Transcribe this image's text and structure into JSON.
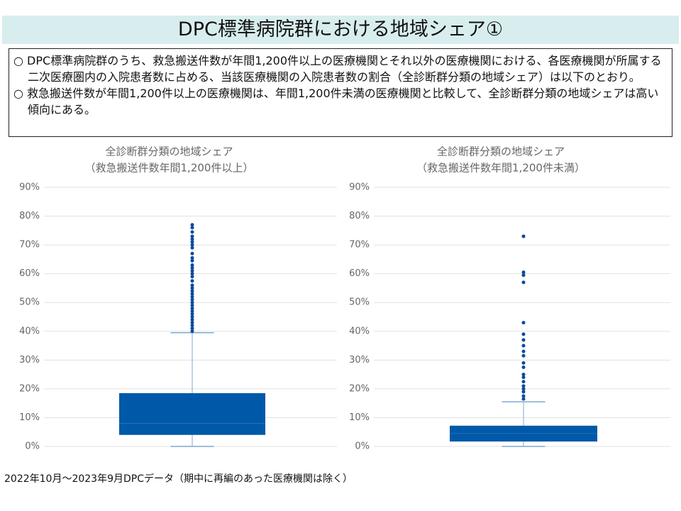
{
  "header": {
    "title": "DPC標準病院群における地域シェア①"
  },
  "bullets": [
    "○ DPC標準病院群のうち、救急搬送件数が年間1,200件以上の医療機関とそれ以外の医療機関における、各医療機関が所属する二次医療圏内の入院患者数に占める、当該医療機関の入院患者数の割合（全診断群分類の地域シェア）は以下のとおり。",
    "○ 救急搬送件数が年間1,200件以上の医療機関は、年間1,200件未満の医療機関と比較して、全診断群分類の地域シェアは高い傾向にある。"
  ],
  "chart_data": [
    {
      "type": "box",
      "title": "全診断群分類の地域シェア",
      "subtitle": "（救急搬送件数年間1,200件以上）",
      "color": "#0059a8",
      "low": 0,
      "q1": 4,
      "median": 8,
      "q3": 18.5,
      "high": 39.5,
      "outliers": [
        77,
        76,
        74.5,
        73,
        72,
        71,
        70,
        69,
        67,
        65.5,
        64.5,
        63,
        62,
        61,
        60,
        59,
        57.5,
        56,
        55,
        54,
        53,
        52,
        51,
        50,
        49,
        48,
        47,
        46,
        45,
        44,
        43,
        42,
        41,
        40
      ],
      "ylim": [
        0,
        90
      ],
      "yticks": [
        {
          "value": 0,
          "label": "0%"
        },
        {
          "value": 10,
          "label": "10%"
        },
        {
          "value": 20,
          "label": "20%"
        },
        {
          "value": 30,
          "label": "30%"
        },
        {
          "value": 40,
          "label": "40%"
        },
        {
          "value": 50,
          "label": "50%"
        },
        {
          "value": 60,
          "label": "60%"
        },
        {
          "value": 70,
          "label": "70%"
        },
        {
          "value": 80,
          "label": "80%"
        },
        {
          "value": 90,
          "label": "90%"
        }
      ],
      "grid": true
    },
    {
      "type": "box",
      "title": "全診断群分類の地域シェア",
      "subtitle": "（救急搬送件数年間1,200件未満）",
      "color": "#0059a8",
      "low": 0,
      "q1": 1.7,
      "median": 4.5,
      "q3": 7.2,
      "high": 15.5,
      "outliers": [
        73,
        60.5,
        59.5,
        57,
        43,
        39,
        37,
        35,
        33,
        31.5,
        29,
        27.5,
        25,
        24,
        22.5,
        21,
        20,
        19,
        17.5,
        16.5
      ],
      "ylim": [
        0,
        90
      ],
      "yticks": [
        {
          "value": 0,
          "label": "0%"
        },
        {
          "value": 10,
          "label": "10%"
        },
        {
          "value": 20,
          "label": "20%"
        },
        {
          "value": 30,
          "label": "30%"
        },
        {
          "value": 40,
          "label": "40%"
        },
        {
          "value": 50,
          "label": "50%"
        },
        {
          "value": 60,
          "label": "60%"
        },
        {
          "value": 70,
          "label": "70%"
        },
        {
          "value": 80,
          "label": "80%"
        },
        {
          "value": 90,
          "label": "90%"
        }
      ],
      "grid": true
    }
  ],
  "footnote": "2022年10月～2023年9月DPCデータ（期中に再編のあった医療機関は除く）"
}
